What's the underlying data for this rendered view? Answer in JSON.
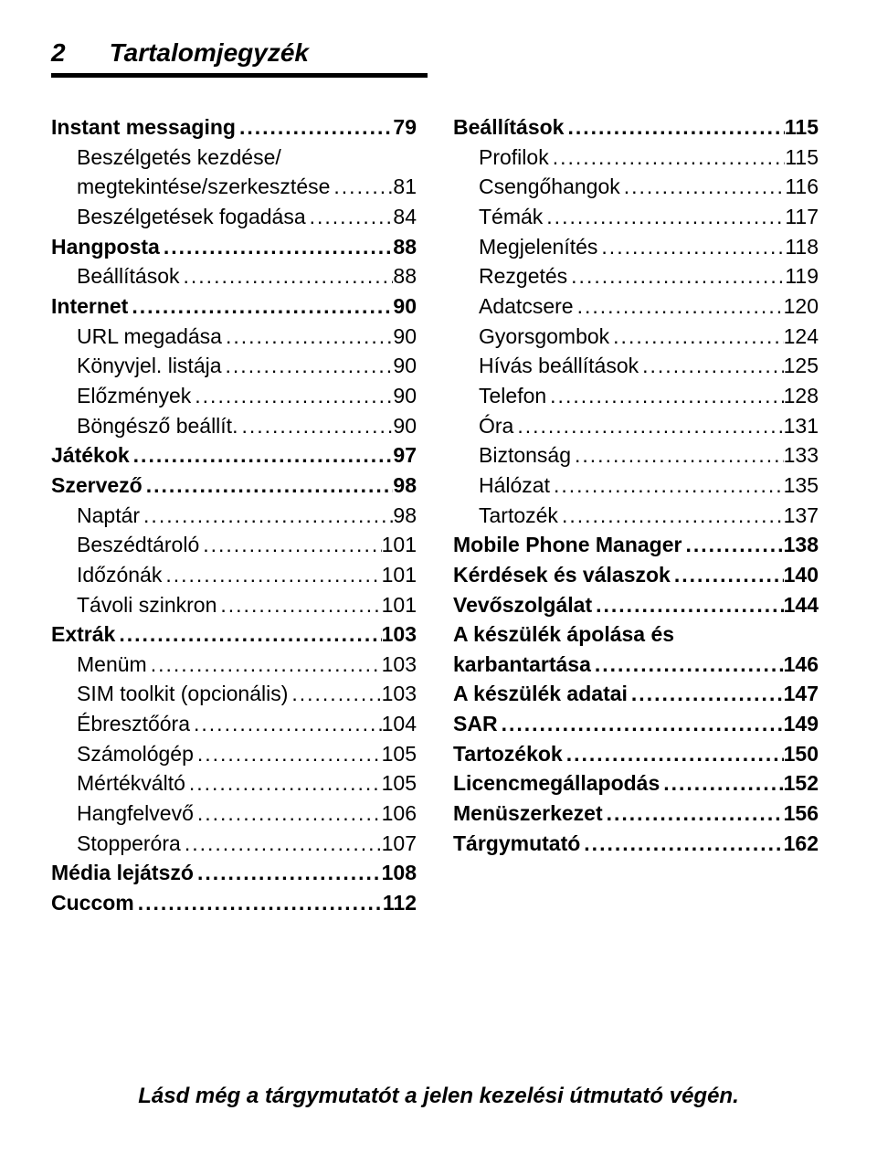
{
  "header": {
    "page_number": "2",
    "title": "Tartalomjegyzék"
  },
  "footer": "Lásd még a tárgymutatót a jelen kezelési útmutató végén.",
  "columns": [
    [
      {
        "label": "Instant messaging",
        "page": "79",
        "level": 0
      },
      {
        "label": "Beszélgetés kezdése/",
        "wrap": true,
        "level": 1
      },
      {
        "label": "megtekintése/szerkesztése",
        "page": "81",
        "level": 1
      },
      {
        "label": "Beszélgetések fogadása",
        "page": "84",
        "level": 1
      },
      {
        "label": "Hangposta",
        "page": "88",
        "level": 0
      },
      {
        "label": "Beállítások",
        "page": "88",
        "level": 1
      },
      {
        "label": "Internet",
        "page": "90",
        "level": 0
      },
      {
        "label": "URL megadása",
        "page": "90",
        "level": 1
      },
      {
        "label": "Könyvjel. listája",
        "page": "90",
        "level": 1
      },
      {
        "label": "Előzmények",
        "page": "90",
        "level": 1
      },
      {
        "label": "Böngésző beállít.",
        "page": "90",
        "level": 1
      },
      {
        "label": "Játékok",
        "page": "97",
        "level": 0
      },
      {
        "label": "Szervező",
        "page": "98",
        "level": 0
      },
      {
        "label": "Naptár",
        "page": "98",
        "level": 1
      },
      {
        "label": "Beszédtároló",
        "page": "101",
        "level": 1
      },
      {
        "label": "Időzónák",
        "page": "101",
        "level": 1
      },
      {
        "label": "Távoli szinkron",
        "page": "101",
        "level": 1
      },
      {
        "label": "Extrák",
        "page": "103",
        "level": 0
      },
      {
        "label": "Menüm",
        "page": "103",
        "level": 1
      },
      {
        "label": "SIM toolkit (opcionális)",
        "page": "103",
        "level": 1
      },
      {
        "label": "Ébresztőóra",
        "page": "104",
        "level": 1
      },
      {
        "label": "Számológép",
        "page": "105",
        "level": 1
      },
      {
        "label": "Mértékváltó",
        "page": "105",
        "level": 1
      },
      {
        "label": "Hangfelvevő",
        "page": "106",
        "level": 1
      },
      {
        "label": "Stopperóra",
        "page": "107",
        "level": 1
      },
      {
        "label": "Média lejátszó",
        "page": "108",
        "level": 0
      },
      {
        "label": "Cuccom",
        "page": "112",
        "level": 0
      }
    ],
    [
      {
        "label": "Beállítások",
        "page": "115",
        "level": 0
      },
      {
        "label": "Profilok",
        "page": "115",
        "level": 1
      },
      {
        "label": "Csengőhangok",
        "page": "116",
        "level": 1
      },
      {
        "label": "Témák",
        "page": "117",
        "level": 1
      },
      {
        "label": "Megjelenítés",
        "page": "118",
        "level": 1
      },
      {
        "label": "Rezgetés",
        "page": "119",
        "level": 1
      },
      {
        "label": "Adatcsere",
        "page": "120",
        "level": 1
      },
      {
        "label": "Gyorsgombok",
        "page": "124",
        "level": 1
      },
      {
        "label": "Hívás beállítások",
        "page": "125",
        "level": 1
      },
      {
        "label": "Telefon",
        "page": "128",
        "level": 1
      },
      {
        "label": "Óra",
        "page": "131",
        "level": 1
      },
      {
        "label": "Biztonság",
        "page": "133",
        "level": 1
      },
      {
        "label": "Hálózat",
        "page": "135",
        "level": 1
      },
      {
        "label": "Tartozék",
        "page": "137",
        "level": 1
      },
      {
        "label": "Mobile Phone Manager",
        "page": "138",
        "level": 0
      },
      {
        "label": "Kérdések és válaszok",
        "page": "140",
        "level": 0
      },
      {
        "label": "Vevőszolgálat",
        "page": "144",
        "level": 0
      },
      {
        "label": "A készülék ápolása és",
        "wrap": true,
        "level": 0
      },
      {
        "label": "karbantartása",
        "page": "146",
        "level": 0
      },
      {
        "label": "A készülék adatai",
        "page": "147",
        "level": 0
      },
      {
        "label": "SAR",
        "page": "149",
        "level": 0
      },
      {
        "label": "Tartozékok",
        "page": "150",
        "level": 0
      },
      {
        "label": "Licencmegállapodás",
        "page": "152",
        "level": 0
      },
      {
        "label": "Menüszerkezet",
        "page": "156",
        "level": 0
      },
      {
        "label": "Tárgymutató",
        "page": "162",
        "level": 0
      }
    ]
  ]
}
